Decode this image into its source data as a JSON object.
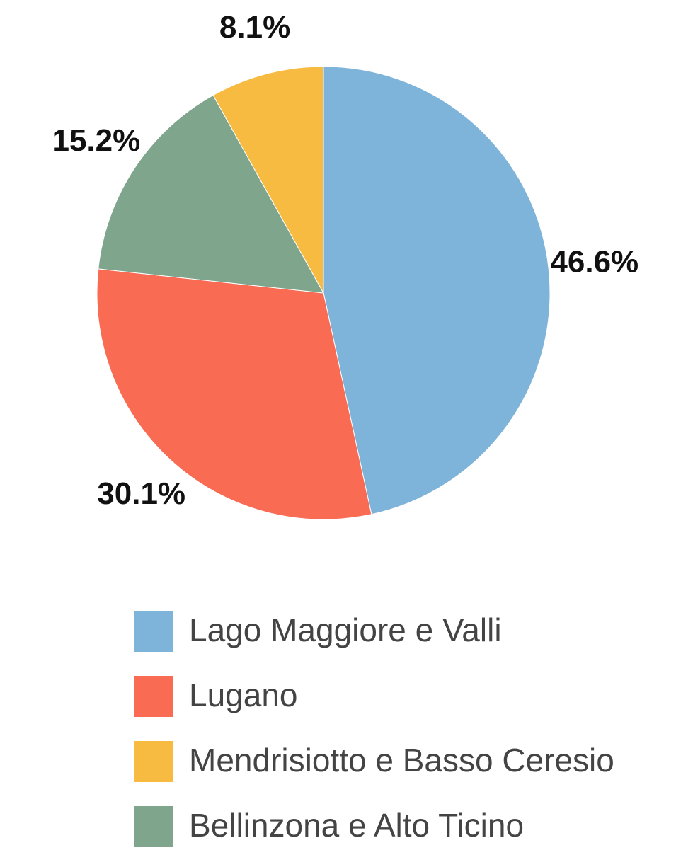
{
  "chart_data": {
    "type": "pie",
    "categories": [
      "Lago Maggiore e Valli",
      "Lugano",
      "Bellinzona e Alto Ticino",
      "Mendrisiotto e Basso Ceresio"
    ],
    "values": [
      46.6,
      30.1,
      15.2,
      8.1
    ],
    "value_labels": [
      "46.6%",
      "30.1%",
      "15.2%",
      "8.1%"
    ],
    "colors": [
      "#7eb3da",
      "#fa6b53",
      "#7fa58d",
      "#f8bb42"
    ],
    "legend_order": [
      0,
      1,
      3,
      2
    ]
  }
}
